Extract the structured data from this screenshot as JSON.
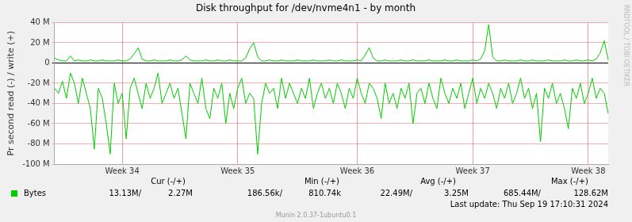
{
  "chart_data": {
    "type": "line",
    "title": "Disk throughput for /dev/nvme4n1 - by month",
    "y_label": "Pr second read (-) / write (+)",
    "grid": true,
    "ylim": [
      -100,
      40
    ],
    "yticks": [
      {
        "value": -100,
        "label": "-100 M"
      },
      {
        "value": -80,
        "label": "-80 M"
      },
      {
        "value": -60,
        "label": "-60 M"
      },
      {
        "value": -40,
        "label": "-40 M"
      },
      {
        "value": -20,
        "label": "-20 M"
      },
      0,
      {
        "value": 20,
        "label": "20 M"
      },
      {
        "value": 40,
        "label": "40 M"
      }
    ],
    "categories": [
      null,
      null,
      null,
      null,
      null,
      null,
      null,
      null,
      null,
      null,
      null,
      null,
      null,
      null,
      null,
      null,
      null,
      "Week 34",
      null,
      null,
      null,
      null,
      null,
      null,
      null,
      null,
      null,
      null,
      null,
      null,
      null,
      null,
      null,
      null,
      null,
      null,
      null,
      null,
      null,
      null,
      null,
      null,
      null,
      null,
      null,
      null,
      "Week 35",
      null,
      null,
      null,
      null,
      null,
      null,
      null,
      null,
      null,
      null,
      null,
      null,
      null,
      null,
      null,
      null,
      null,
      null,
      null,
      null,
      null,
      null,
      null,
      null,
      null,
      null,
      null,
      null,
      null,
      "Week 36",
      null,
      null,
      null,
      null,
      null,
      null,
      null,
      null,
      null,
      null,
      null,
      null,
      null,
      null,
      null,
      null,
      null,
      null,
      null,
      null,
      null,
      null,
      null,
      null,
      null,
      null,
      null,
      null,
      "Week 37",
      null,
      null,
      null,
      null,
      null,
      null,
      null,
      null,
      null,
      null,
      null,
      null,
      null,
      null,
      null,
      null,
      null,
      null,
      null,
      null,
      null,
      null,
      null,
      null,
      null,
      null,
      null,
      null,
      "Week 38",
      null,
      null,
      null,
      null,
      null
    ],
    "series": [
      {
        "name": "Bytes",
        "color": "#00cc00",
        "values": [
          5,
          3,
          2,
          2,
          7,
          2,
          3,
          2,
          2,
          3,
          2,
          2,
          3,
          2,
          2,
          2,
          3,
          2,
          2,
          4,
          9,
          15,
          4,
          2,
          2,
          3,
          2,
          2,
          2,
          3,
          2,
          2,
          3,
          7,
          3,
          2,
          2,
          2,
          3,
          2,
          2,
          3,
          2,
          2,
          3,
          2,
          2,
          2,
          5,
          14,
          20,
          6,
          2,
          2,
          3,
          2,
          2,
          3,
          2,
          2,
          2,
          3,
          2,
          2,
          2,
          3,
          2,
          2,
          2,
          3,
          2,
          2,
          3,
          2,
          2,
          2,
          3,
          2,
          8,
          15,
          5,
          2,
          2,
          3,
          2,
          2,
          2,
          3,
          2,
          2,
          3,
          2,
          2,
          2,
          3,
          2,
          2,
          2,
          3,
          2,
          2,
          3,
          2,
          2,
          2,
          3,
          2,
          4,
          12,
          38,
          6,
          2,
          2,
          3,
          2,
          2,
          2,
          3,
          2,
          2,
          3,
          2,
          2,
          2,
          3,
          2,
          2,
          2,
          3,
          2,
          2,
          3,
          2,
          2,
          3,
          2,
          4,
          10,
          22,
          3
        ],
        "read_values": [
          -25,
          -30,
          -18,
          -35,
          -10,
          -20,
          -40,
          -15,
          -30,
          -45,
          -85,
          -25,
          -35,
          -60,
          -90,
          -20,
          -40,
          -30,
          -75,
          -25,
          -15,
          -30,
          -45,
          -20,
          -35,
          -25,
          -10,
          -40,
          -30,
          -20,
          -35,
          -25,
          -50,
          -75,
          -20,
          -30,
          -40,
          -15,
          -45,
          -55,
          -25,
          -35,
          -20,
          -60,
          -30,
          -45,
          -25,
          -15,
          -40,
          -30,
          -35,
          -90,
          -40,
          -20,
          -30,
          -25,
          -45,
          -15,
          -35,
          -20,
          -30,
          -40,
          -25,
          -35,
          -15,
          -45,
          -30,
          -20,
          -35,
          -25,
          -40,
          -20,
          -30,
          -45,
          -25,
          -35,
          -15,
          -30,
          -40,
          -20,
          -25,
          -35,
          -55,
          -20,
          -40,
          -30,
          -45,
          -25,
          -35,
          -20,
          -60,
          -30,
          -25,
          -40,
          -20,
          -35,
          -45,
          -15,
          -30,
          -40,
          -25,
          -35,
          -20,
          -45,
          -30,
          -15,
          -40,
          -25,
          -35,
          -20,
          -30,
          -45,
          -25,
          -35,
          -20,
          -40,
          -30,
          -15,
          -35,
          -25,
          -45,
          -30,
          -78,
          -25,
          -35,
          -20,
          -40,
          -30,
          -45,
          -65,
          -25,
          -35,
          -20,
          -40,
          -30,
          -15,
          -35,
          -25,
          -30,
          -50
        ]
      }
    ],
    "legend_table": {
      "headers": [
        "Cur (-/+)",
        "Min (-/+)",
        "Avg (-/+)",
        "Max (-/+)"
      ],
      "cells": [
        "13.13M/",
        "2.27M",
        "186.56k/",
        "810.74k",
        "22.49M/",
        "3.25M",
        "685.44M/",
        "128.62M"
      ]
    },
    "last_update": "Last update: Thu Sep 19 17:10:31 2024",
    "credit": "Munin 2.0.37-1ubuntu0.1",
    "side_text": "RRDTOOL / TOBI OETIKER"
  }
}
